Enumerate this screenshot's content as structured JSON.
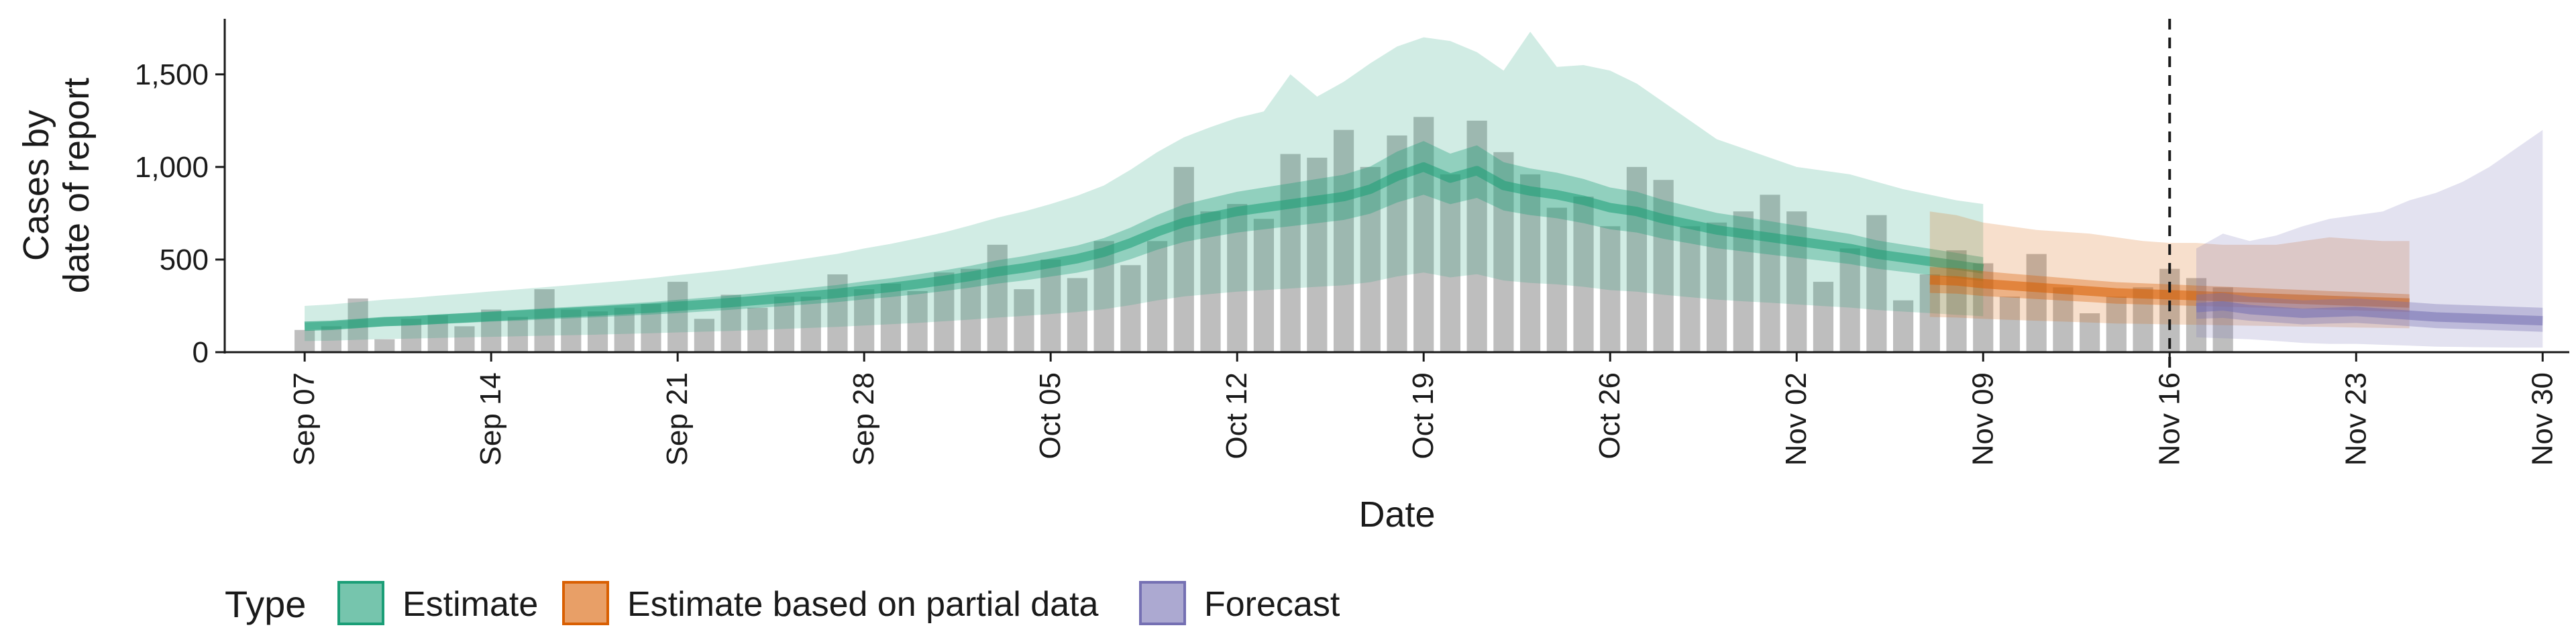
{
  "chart_data": {
    "type": "area",
    "xlabel": "Date",
    "ylabel_lines": [
      "Cases by",
      "date of report"
    ],
    "ylim": [
      0,
      1800
    ],
    "y_ticks": [
      0,
      500,
      1000,
      1500
    ],
    "y_tick_labels": [
      "0",
      "500",
      "1,000",
      "1,500"
    ],
    "x_range": [
      "2020-09-04",
      "2020-12-01"
    ],
    "x_ticks": [
      "2020-09-07",
      "2020-09-14",
      "2020-09-21",
      "2020-09-28",
      "2020-10-05",
      "2020-10-12",
      "2020-10-19",
      "2020-10-26",
      "2020-11-02",
      "2020-11-09",
      "2020-11-16",
      "2020-11-23",
      "2020-11-30"
    ],
    "x_tick_labels": [
      "Sep 07",
      "Sep 14",
      "Sep 21",
      "Sep 28",
      "Oct 05",
      "Oct 12",
      "Oct 19",
      "Oct 26",
      "Nov 02",
      "Nov 09",
      "Nov 16",
      "Nov 23",
      "Nov 30"
    ],
    "vline_date": "2020-11-16",
    "grid": false,
    "legend": {
      "position": "bottom",
      "title": "Type",
      "entries": [
        {
          "label": "Estimate",
          "color": "#1b9e77"
        },
        {
          "label": "Estimate based on partial data",
          "color": "#d95f02"
        },
        {
          "label": "Forecast",
          "color": "#7570b3"
        }
      ]
    },
    "bar_color": "#b3b3b3",
    "reported_cases": {
      "start": "2020-09-07",
      "values": [
        120,
        140,
        290,
        70,
        180,
        200,
        140,
        230,
        190,
        340,
        230,
        220,
        240,
        260,
        380,
        180,
        310,
        240,
        300,
        300,
        420,
        340,
        370,
        330,
        430,
        450,
        580,
        340,
        500,
        400,
        600,
        470,
        600,
        1000,
        760,
        800,
        720,
        1070,
        1050,
        1200,
        1000,
        1170,
        1270,
        960,
        1250,
        1080,
        960,
        780,
        840,
        680,
        1000,
        930,
        680,
        700,
        760,
        850,
        760,
        380,
        560,
        740,
        280,
        420,
        550,
        480,
        300,
        530,
        350,
        210,
        300,
        350,
        450,
        400,
        350
      ]
    },
    "bands": [
      {
        "name": "Estimate",
        "color": "#1b9e77",
        "start": "2020-09-07",
        "median": [
          140,
          145,
          155,
          165,
          170,
          178,
          185,
          193,
          200,
          208,
          215,
          222,
          230,
          238,
          248,
          258,
          268,
          280,
          292,
          305,
          318,
          335,
          350,
          368,
          388,
          410,
          435,
          455,
          480,
          505,
          540,
          590,
          650,
          700,
          730,
          760,
          780,
          800,
          820,
          840,
          880,
          950,
          1000,
          940,
          980,
          900,
          870,
          850,
          820,
          780,
          760,
          720,
          690,
          660,
          640,
          620,
          600,
          580,
          560,
          530,
          510,
          490,
          470,
          450
        ],
        "inner_low": [
          120,
          125,
          132,
          140,
          145,
          152,
          158,
          165,
          170,
          177,
          183,
          189,
          196,
          203,
          211,
          220,
          229,
          239,
          249,
          260,
          271,
          285,
          298,
          313,
          330,
          349,
          370,
          387,
          408,
          429,
          459,
          502,
          553,
          595,
          621,
          646,
          663,
          680,
          697,
          714,
          748,
          808,
          850,
          799,
          833,
          765,
          740,
          723,
          697,
          663,
          646,
          612,
          587,
          561,
          544,
          527,
          510,
          493,
          476,
          451,
          434,
          417,
          400,
          383
        ],
        "inner_high": [
          160,
          166,
          177,
          188,
          194,
          203,
          211,
          220,
          228,
          237,
          245,
          253,
          262,
          271,
          283,
          294,
          306,
          319,
          333,
          348,
          363,
          382,
          399,
          420,
          442,
          467,
          496,
          519,
          547,
          576,
          616,
          673,
          741,
          798,
          832,
          866,
          889,
          912,
          935,
          958,
          1003,
          1083,
          1140,
          1072,
          1117,
          1026,
          992,
          969,
          935,
          889,
          866,
          821,
          787,
          752,
          730,
          707,
          684,
          661,
          638,
          604,
          581,
          559,
          536,
          513
        ],
        "outer_low": [
          60,
          62,
          67,
          71,
          73,
          77,
          80,
          83,
          86,
          89,
          92,
          95,
          99,
          102,
          107,
          111,
          115,
          120,
          126,
          131,
          137,
          144,
          151,
          158,
          167,
          176,
          187,
          196,
          206,
          217,
          232,
          254,
          280,
          301,
          314,
          327,
          335,
          344,
          353,
          361,
          378,
          409,
          430,
          404,
          421,
          387,
          374,
          366,
          353,
          335,
          327,
          310,
          297,
          284,
          275,
          267,
          258,
          249,
          241,
          228,
          219,
          211,
          202,
          194
        ],
        "outer_high": [
          250,
          258,
          271,
          284,
          293,
          305,
          316,
          328,
          339,
          351,
          362,
          374,
          386,
          400,
          416,
          431,
          447,
          468,
          488,
          510,
          531,
          560,
          585,
          615,
          647,
          685,
          726,
          760,
          800,
          845,
          900,
          985,
          1080,
          1160,
          1215,
          1265,
          1300,
          1500,
          1380,
          1460,
          1560,
          1650,
          1700,
          1680,
          1620,
          1520,
          1730,
          1540,
          1550,
          1520,
          1450,
          1350,
          1250,
          1150,
          1100,
          1050,
          1000,
          980,
          960,
          920,
          880,
          850,
          820,
          800
        ]
      },
      {
        "name": "Estimate based on partial data",
        "color": "#d95f02",
        "start": "2020-11-07",
        "median": [
          390,
          385,
          370,
          360,
          350,
          340,
          330,
          320,
          315,
          310,
          305,
          300,
          295,
          290,
          285,
          280,
          275,
          270,
          265
        ],
        "inner_low": [
          320,
          316,
          303,
          295,
          287,
          279,
          271,
          262,
          258,
          254,
          250,
          246,
          242,
          238,
          234,
          230,
          226,
          221,
          217
        ],
        "inner_high": [
          460,
          454,
          437,
          425,
          413,
          401,
          389,
          378,
          372,
          366,
          360,
          354,
          348,
          342,
          336,
          330,
          325,
          319,
          313
        ],
        "outer_low": [
          190,
          187,
          180,
          175,
          170,
          165,
          160,
          155,
          153,
          150,
          148,
          146,
          143,
          141,
          138,
          136,
          133,
          131,
          129
        ],
        "outer_high": [
          760,
          740,
          700,
          680,
          660,
          650,
          640,
          620,
          600,
          590,
          590,
          580,
          580,
          580,
          600,
          620,
          610,
          600,
          600
        ]
      },
      {
        "name": "Forecast",
        "color": "#7570b3",
        "start": "2020-11-17",
        "median": [
          240,
          250,
          230,
          220,
          210,
          215,
          220,
          210,
          200,
          190,
          185,
          180,
          175,
          170
        ],
        "inner_low": [
          180,
          185,
          170,
          160,
          150,
          155,
          158,
          150,
          140,
          130,
          125,
          120,
          115,
          110
        ],
        "inner_high": [
          310,
          320,
          300,
          290,
          280,
          285,
          290,
          280,
          270,
          260,
          255,
          250,
          245,
          240
        ],
        "outer_low": [
          80,
          75,
          70,
          60,
          50,
          45,
          45,
          40,
          35,
          30,
          28,
          26,
          25,
          25
        ],
        "outer_high": [
          560,
          640,
          600,
          630,
          680,
          720,
          740,
          760,
          820,
          860,
          920,
          1000,
          1100,
          1200
        ]
      }
    ]
  }
}
